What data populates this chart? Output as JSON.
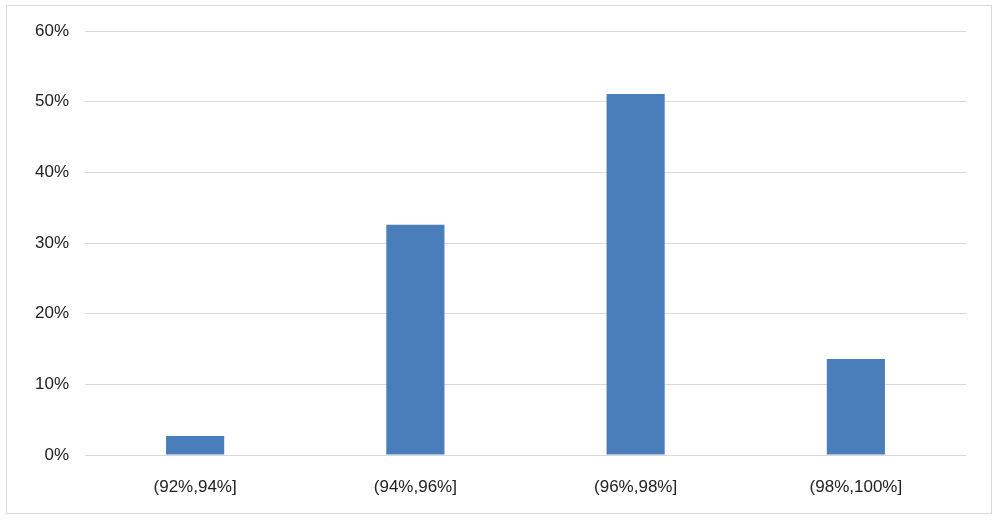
{
  "chart_data": {
    "type": "bar",
    "categories": [
      "(92%,94%]",
      "(94%,96%]",
      "(96%,98%]",
      "(98%,100%]"
    ],
    "values": [
      2.7,
      32.6,
      51.1,
      13.6
    ],
    "color": "#4a7ebb",
    "ylim": [
      0,
      60
    ],
    "yticks": [
      {
        "value": 0,
        "label": "0%"
      },
      {
        "value": 10,
        "label": "10%"
      },
      {
        "value": 20,
        "label": "20%"
      },
      {
        "value": 30,
        "label": "30%"
      },
      {
        "value": 40,
        "label": "40%"
      },
      {
        "value": 50,
        "label": "50%"
      },
      {
        "value": 60,
        "label": "60%"
      }
    ],
    "grid": "y"
  }
}
